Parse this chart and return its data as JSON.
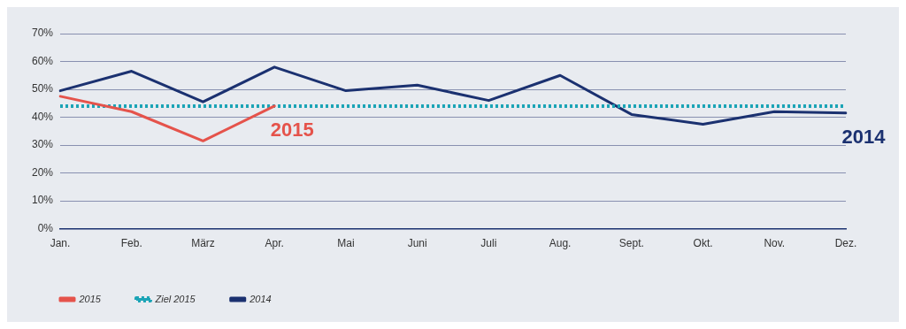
{
  "chart_data": {
    "type": "line",
    "categories": [
      "Jan.",
      "Feb.",
      "März",
      "Apr.",
      "Mai",
      "Juni",
      "Juli",
      "Aug.",
      "Sept.",
      "Okt.",
      "Nov.",
      "Dez."
    ],
    "series": [
      {
        "name": "2015",
        "color": "#e5534b",
        "values": [
          47.5,
          42,
          31.5,
          44,
          null,
          null,
          null,
          null,
          null,
          null,
          null,
          null
        ]
      },
      {
        "name": "Ziel 2015",
        "color": "#1ba4b6",
        "line_style": "dotted",
        "values": [
          44,
          44,
          44,
          44,
          44,
          44,
          44,
          44,
          44,
          44,
          44,
          44
        ]
      },
      {
        "name": "2014",
        "color": "#1b3170",
        "values": [
          49.5,
          56.5,
          45.5,
          58,
          49.5,
          51.5,
          46,
          55,
          41,
          37.5,
          42,
          41.5
        ]
      }
    ],
    "ylim": [
      0,
      70
    ],
    "yticks": [
      {
        "value": 0,
        "label": "0%"
      },
      {
        "value": 10,
        "label": "10%"
      },
      {
        "value": 20,
        "label": "20%"
      },
      {
        "value": 30,
        "label": "30%"
      },
      {
        "value": 40,
        "label": "40%"
      },
      {
        "value": 50,
        "label": "50%"
      },
      {
        "value": 60,
        "label": "60%"
      },
      {
        "value": 70,
        "label": "70%"
      }
    ],
    "grid": "y",
    "legend": "bottom left",
    "marker": "none",
    "line_style": "solid",
    "annotations": [
      "2015",
      "2014"
    ]
  }
}
